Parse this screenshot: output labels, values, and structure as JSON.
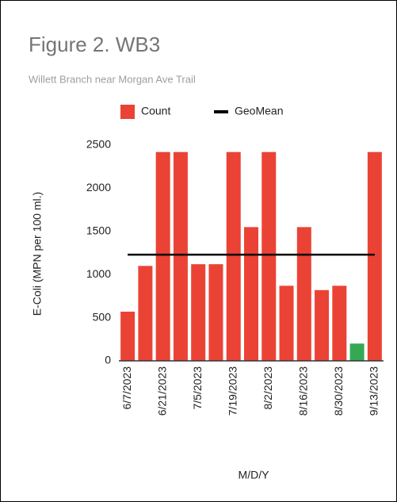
{
  "chart_data": {
    "type": "bar",
    "title": "Figure 2. WB3",
    "subtitle": "Willett Branch near Morgan Ave Trail",
    "x_label": "M/D/Y",
    "y_label": "E-Coli (MPN per 100 ml.)",
    "categories": [
      "6/7/2023",
      null,
      "6/21/2023",
      null,
      "7/5/2023",
      null,
      "7/19/2023",
      null,
      "8/2/2023",
      null,
      "8/16/2023",
      null,
      "8/30/2023",
      null,
      "9/13/2023"
    ],
    "series": [
      {
        "name": "Count",
        "color": "#ea4335",
        "values": [
          570,
          1100,
          2420,
          2420,
          1120,
          1120,
          2420,
          1550,
          2420,
          870,
          1550,
          820,
          870,
          200,
          2420
        ],
        "point_colors": [
          "#ea4335",
          "#ea4335",
          "#ea4335",
          "#ea4335",
          "#ea4335",
          "#ea4335",
          "#ea4335",
          "#ea4335",
          "#ea4335",
          "#ea4335",
          "#ea4335",
          "#ea4335",
          "#ea4335",
          "#34a853",
          "#ea4335"
        ]
      },
      {
        "name": "GeoMean",
        "color": "#000000",
        "type": "line",
        "value": 1230
      }
    ],
    "ylim": [
      0,
      2500
    ],
    "yticks": [
      0,
      500,
      1000,
      1500,
      2000,
      2500
    ],
    "grid": false,
    "legend": "top"
  }
}
